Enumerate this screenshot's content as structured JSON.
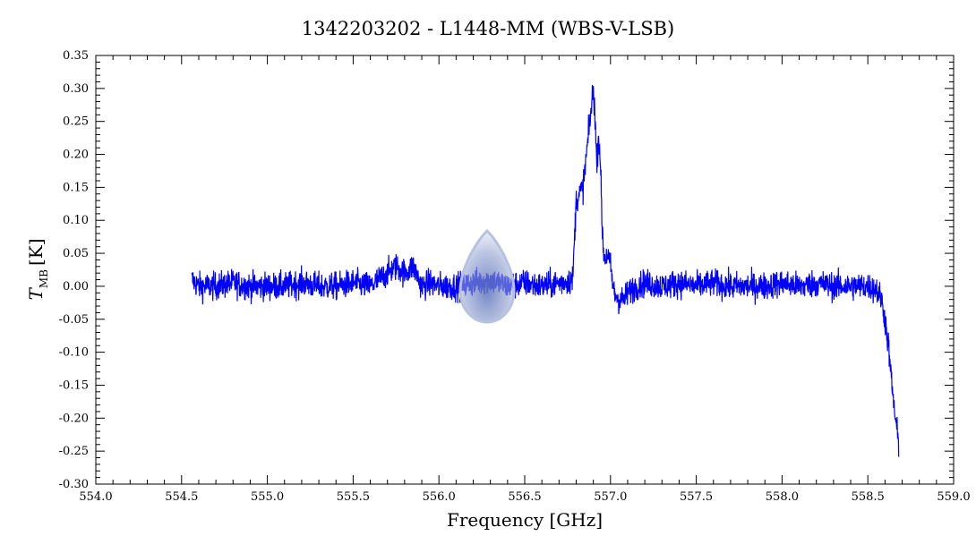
{
  "chart_data": {
    "type": "line",
    "title": "1342203202 - L1448-MM (WBS-V-LSB)",
    "xlabel": "Frequency [GHz]",
    "ylabel_main": "T",
    "ylabel_sub": "MB",
    "ylabel_unit": "[K]",
    "xlim": [
      554.0,
      559.0
    ],
    "ylim": [
      -0.3,
      0.35
    ],
    "x_ticks": [
      "554.0",
      "554.5",
      "555.0",
      "555.5",
      "556.0",
      "556.5",
      "557.0",
      "557.5",
      "558.0",
      "558.5",
      "559.0"
    ],
    "y_ticks": [
      "0.35",
      "0.30",
      "0.25",
      "0.20",
      "0.15",
      "0.10",
      "0.05",
      "0.00",
      "-0.05",
      "-0.10",
      "-0.15",
      "-0.20",
      "-0.25",
      "-0.30"
    ],
    "grid": false,
    "line_color": "#0000ff",
    "series": [
      {
        "x": [
          554.56,
          554.6,
          554.7,
          554.8,
          554.9,
          555.0,
          555.1,
          555.2,
          555.3,
          555.4,
          555.5,
          555.6,
          555.7,
          555.75,
          555.8,
          555.85,
          555.9,
          555.95,
          556.0,
          556.1,
          556.2,
          556.3,
          556.4,
          556.5,
          556.6,
          556.7,
          556.78,
          556.8,
          556.82,
          556.84,
          556.86,
          556.88,
          556.9,
          556.91,
          556.92,
          556.93,
          556.94,
          556.95,
          556.96,
          556.97,
          556.98,
          557.0,
          557.02,
          557.05,
          557.08,
          557.1,
          557.15,
          557.2,
          557.3,
          557.4,
          557.5,
          557.6,
          557.7,
          557.8,
          557.9,
          558.0,
          558.1,
          558.2,
          558.3,
          558.4,
          558.5,
          558.55,
          558.58,
          558.6,
          558.62,
          558.64,
          558.66,
          558.68
        ],
        "y": [
          0.01,
          0.0,
          0.0,
          0.005,
          0.0,
          0.0,
          0.0,
          0.005,
          0.0,
          0.0,
          0.005,
          0.0,
          0.02,
          0.03,
          0.02,
          0.03,
          0.0,
          0.005,
          0.0,
          0.0,
          0.005,
          0.01,
          0.0,
          0.005,
          0.0,
          0.005,
          0.01,
          0.13,
          0.14,
          0.15,
          0.2,
          0.25,
          0.3,
          0.26,
          0.18,
          0.23,
          0.2,
          0.1,
          0.05,
          0.04,
          0.05,
          0.03,
          -0.01,
          -0.02,
          -0.02,
          -0.01,
          0.0,
          0.005,
          0.0,
          0.005,
          0.0,
          0.005,
          0.0,
          0.0,
          0.0,
          0.005,
          0.0,
          0.005,
          0.0,
          0.0,
          0.0,
          -0.005,
          -0.02,
          -0.05,
          -0.09,
          -0.15,
          -0.2,
          -0.24
        ]
      }
    ]
  }
}
